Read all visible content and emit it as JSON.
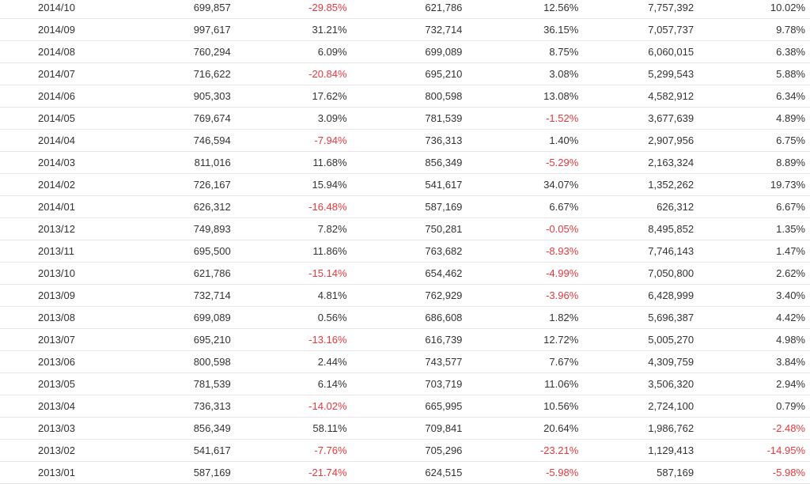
{
  "colors": {
    "text": "#333333",
    "negative": "#e8383d",
    "row_border": "#e6e6e6"
  },
  "table": {
    "rows": [
      [
        "2014/10",
        "699,857",
        "-29.85%",
        "621,786",
        "12.56%",
        "7,757,392",
        "10.02%"
      ],
      [
        "2014/09",
        "997,617",
        "31.21%",
        "732,714",
        "36.15%",
        "7,057,737",
        "9.78%"
      ],
      [
        "2014/08",
        "760,294",
        "6.09%",
        "699,089",
        "8.75%",
        "6,060,015",
        "6.38%"
      ],
      [
        "2014/07",
        "716,622",
        "-20.84%",
        "695,210",
        "3.08%",
        "5,299,543",
        "5.88%"
      ],
      [
        "2014/06",
        "905,303",
        "17.62%",
        "800,598",
        "13.08%",
        "4,582,912",
        "6.34%"
      ],
      [
        "2014/05",
        "769,674",
        "3.09%",
        "781,539",
        "-1.52%",
        "3,677,639",
        "4.89%"
      ],
      [
        "2014/04",
        "746,594",
        "-7.94%",
        "736,313",
        "1.40%",
        "2,907,956",
        "6.75%"
      ],
      [
        "2014/03",
        "811,016",
        "11.68%",
        "856,349",
        "-5.29%",
        "2,163,324",
        "8.89%"
      ],
      [
        "2014/02",
        "726,167",
        "15.94%",
        "541,617",
        "34.07%",
        "1,352,262",
        "19.73%"
      ],
      [
        "2014/01",
        "626,312",
        "-16.48%",
        "587,169",
        "6.67%",
        "626,312",
        "6.67%"
      ],
      [
        "2013/12",
        "749,893",
        "7.82%",
        "750,281",
        "-0.05%",
        "8,495,852",
        "1.35%"
      ],
      [
        "2013/11",
        "695,500",
        "11.86%",
        "763,682",
        "-8.93%",
        "7,746,143",
        "1.47%"
      ],
      [
        "2013/10",
        "621,786",
        "-15.14%",
        "654,462",
        "-4.99%",
        "7,050,800",
        "2.62%"
      ],
      [
        "2013/09",
        "732,714",
        "4.81%",
        "762,929",
        "-3.96%",
        "6,428,999",
        "3.40%"
      ],
      [
        "2013/08",
        "699,089",
        "0.56%",
        "686,608",
        "1.82%",
        "5,696,387",
        "4.42%"
      ],
      [
        "2013/07",
        "695,210",
        "-13.16%",
        "616,739",
        "12.72%",
        "5,005,270",
        "4.98%"
      ],
      [
        "2013/06",
        "800,598",
        "2.44%",
        "743,577",
        "7.67%",
        "4,309,759",
        "3.84%"
      ],
      [
        "2013/05",
        "781,539",
        "6.14%",
        "703,719",
        "11.06%",
        "3,506,320",
        "2.94%"
      ],
      [
        "2013/04",
        "736,313",
        "-14.02%",
        "665,995",
        "10.56%",
        "2,724,100",
        "0.79%"
      ],
      [
        "2013/03",
        "856,349",
        "58.11%",
        "709,841",
        "20.64%",
        "1,986,762",
        "-2.48%"
      ],
      [
        "2013/02",
        "541,617",
        "-7.76%",
        "705,296",
        "-23.21%",
        "1,129,413",
        "-14.95%"
      ],
      [
        "2013/01",
        "587,169",
        "-21.74%",
        "624,515",
        "-5.98%",
        "587,169",
        "-5.98%"
      ]
    ]
  }
}
